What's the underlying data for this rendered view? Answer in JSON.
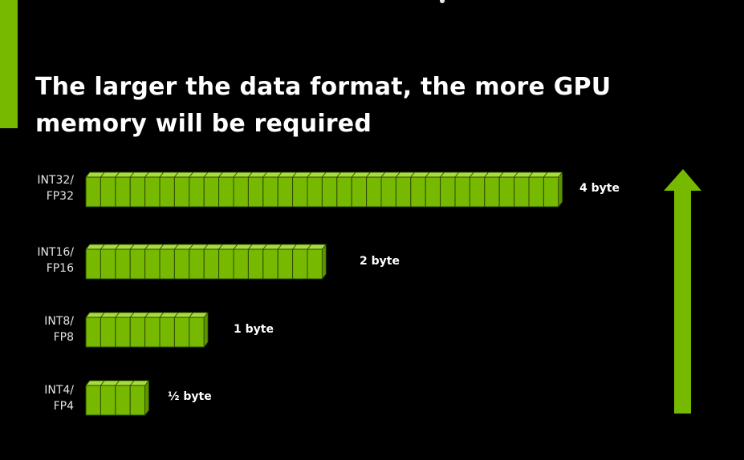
{
  "title": "The larger the data format, the more GPU memory will be required",
  "colors": {
    "accent": "#76b900",
    "block_front": "#76b900",
    "block_top": "#a6dc3c",
    "block_side": "#5c9400",
    "block_line": "#2d4a00",
    "background": "#000000"
  },
  "formats": [
    {
      "label_line1": "INT32/",
      "label_line2": "FP32",
      "bytes_label": "4 byte",
      "bytes": 4,
      "block_count": 32
    },
    {
      "label_line1": "INT16/",
      "label_line2": "FP16",
      "bytes_label": "2 byte",
      "bytes": 2,
      "block_count": 16
    },
    {
      "label_line1": "INT8/",
      "label_line2": "FP8",
      "bytes_label": "1 byte",
      "bytes": 1,
      "block_count": 8
    },
    {
      "label_line1": "INT4/",
      "label_line2": "FP4",
      "bytes_label": "½ byte",
      "bytes": 0.5,
      "block_count": 4
    }
  ],
  "arrow": {
    "icon": "up-arrow-icon"
  }
}
